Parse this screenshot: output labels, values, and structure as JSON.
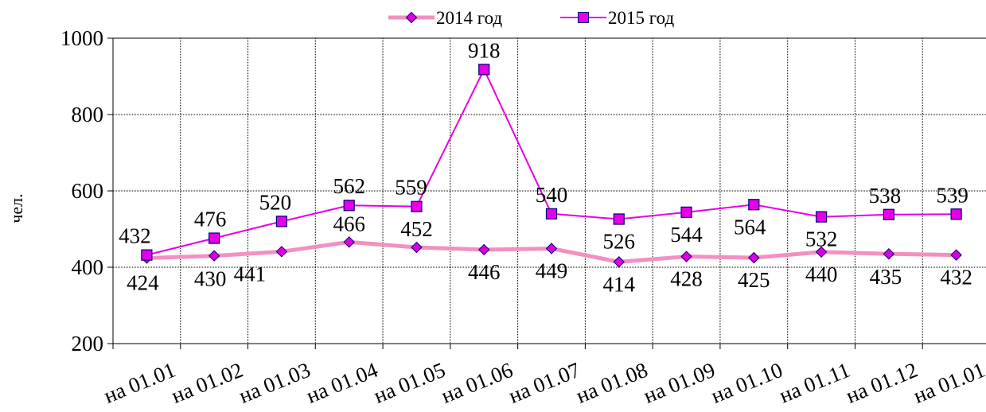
{
  "chart_data": {
    "type": "line",
    "categories": [
      "на 01.01",
      "на 01.02",
      "на 01.03",
      "на 01.04",
      "на 01.05",
      "на 01.06",
      "на 01.07",
      "на 01.08",
      "на 01.09",
      "на 01.10",
      "на 01.11",
      "на 01.12",
      "на 01.01"
    ],
    "series": [
      {
        "name": "2014 год",
        "values": [
          424,
          430,
          441,
          466,
          452,
          446,
          449,
          414,
          428,
          425,
          440,
          435,
          432
        ],
        "color": "#F48FC1",
        "marker": "diamond",
        "marker_color": "#DD00DD"
      },
      {
        "name": "2015 год",
        "values": [
          432,
          476,
          520,
          562,
          559,
          918,
          540,
          526,
          544,
          564,
          532,
          538,
          539
        ],
        "color": "#E600E6",
        "marker": "square",
        "marker_color": "#E600E6"
      }
    ],
    "ylabel": "чел.",
    "xlabel": "",
    "ylim": [
      200,
      1000
    ],
    "yticks": [
      200,
      400,
      600,
      800,
      1000
    ],
    "grid": true,
    "legend_position": "top"
  }
}
